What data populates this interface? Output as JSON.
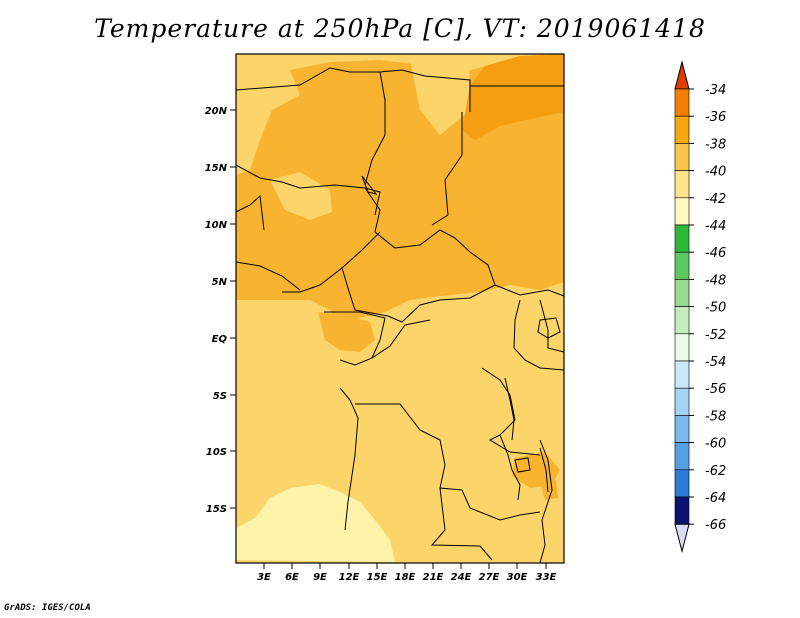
{
  "title": "Temperature at 250hPa [C], VT: 2019061418",
  "credit": "GrADS: IGES/COLA",
  "lat_labels": [
    "20N",
    "15N",
    "10N",
    "5N",
    "EQ",
    "5S",
    "10S",
    "15S"
  ],
  "lon_labels": [
    "3E",
    "6E",
    "9E",
    "12E",
    "15E",
    "18E",
    "21E",
    "24E",
    "27E",
    "30E",
    "33E"
  ],
  "colorbar": {
    "levels": [
      "-34",
      "-36",
      "-38",
      "-40",
      "-42",
      "-44",
      "-46",
      "-48",
      "-50",
      "-52",
      "-54",
      "-56",
      "-58",
      "-60",
      "-62",
      "-64",
      "-66"
    ],
    "colors": [
      "#e03c00",
      "#f27f00",
      "#f8a80c",
      "#fbc44a",
      "#fde48c",
      "#fff8c0",
      "#2fb838",
      "#5ec963",
      "#96db91",
      "#c2eeba",
      "#eafce8",
      "#cbe8fb",
      "#a4d3f4",
      "#7cbaee",
      "#569ee2",
      "#2e7ad6",
      "#1553b6",
      "#0b2890",
      "#0a0f68",
      "#dcdcf8"
    ]
  },
  "map_colors": {
    "t_38_36": "#f59e12",
    "t_40_38": "#f8b330",
    "t_42_40": "#fcd56a",
    "t_44_42": "#fef3a8",
    "borders": "#000000"
  }
}
